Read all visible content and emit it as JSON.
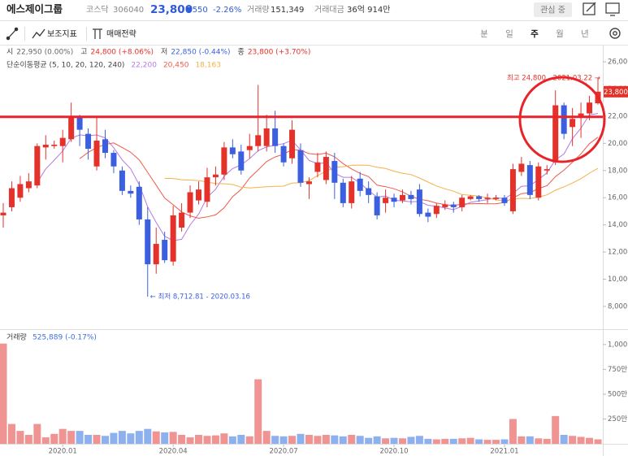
{
  "header": {
    "name": "에스제이그룹",
    "market": "코스닥",
    "code": "306040",
    "price": "23,800",
    "change": "▼550",
    "change_pct": "-2.26%",
    "volume_label": "거래량",
    "volume": "151,349",
    "amount_label": "거래대금",
    "amount": "36억 914만",
    "watch": "관심 중"
  },
  "toolbar": {
    "indicators": "보조지표",
    "strategy": "매매전략",
    "periods": [
      "분",
      "일",
      "주",
      "월",
      "년"
    ],
    "selected_period": 2
  },
  "ohlc_info": [
    {
      "label": "시",
      "value": "22,950 (0.00%)",
      "color": "#666666"
    },
    {
      "label": "고",
      "value": "24,800 (+8.06%)",
      "color": "#e4322b"
    },
    {
      "label": "저",
      "value": "22,850 (-0.44%)",
      "color": "#3c5fe0"
    },
    {
      "label": "종",
      "value": "23,800 (+3.70%)",
      "color": "#e4322b"
    }
  ],
  "chart_data": [
    {
      "type": "candlestick",
      "categories": [
        null,
        null,
        null,
        null,
        null,
        null,
        null,
        "2020.01",
        null,
        null,
        null,
        null,
        null,
        null,
        null,
        null,
        null,
        null,
        null,
        null,
        "2020.04",
        null,
        null,
        null,
        null,
        null,
        null,
        null,
        null,
        null,
        null,
        null,
        null,
        "2020.07",
        null,
        null,
        null,
        null,
        null,
        null,
        null,
        null,
        null,
        null,
        null,
        null,
        "2020.10",
        null,
        null,
        null,
        null,
        null,
        null,
        null,
        null,
        null,
        null,
        null,
        null,
        "2021.01",
        null,
        null,
        null,
        null,
        null,
        null,
        null,
        null,
        null,
        null,
        null
      ],
      "open": [
        14700,
        15300,
        16000,
        16700,
        16900,
        19700,
        19800,
        19800,
        20300,
        21900,
        20700,
        18300,
        20300,
        19300,
        18000,
        16500,
        16800,
        14400,
        11100,
        12900,
        11300,
        13800,
        14900,
        15800,
        15700,
        17500,
        17700,
        19700,
        19400,
        19500,
        19800,
        19800,
        21100,
        19800,
        18900,
        19500,
        17000,
        17900,
        17300,
        18700,
        17100,
        15600,
        17400,
        16700,
        16100,
        15600,
        16000,
        15800,
        16200,
        16600,
        14900,
        14800,
        15300,
        15500,
        15300,
        15900,
        16100,
        15900,
        15900,
        16000,
        15000,
        17900,
        18400,
        16000,
        18000,
        18600,
        22800,
        21200,
        22000,
        22200,
        22950
      ],
      "high": [
        15600,
        17200,
        17600,
        17800,
        20000,
        20600,
        20200,
        21000,
        23000,
        22100,
        21100,
        21900,
        21000,
        19500,
        18300,
        16900,
        17200,
        15300,
        13800,
        13500,
        15400,
        15600,
        16900,
        17200,
        18200,
        18300,
        20100,
        20300,
        19900,
        20700,
        24300,
        22100,
        22400,
        20000,
        21700,
        20000,
        17500,
        19300,
        19400,
        19300,
        17400,
        17600,
        17900,
        17200,
        16400,
        16600,
        16300,
        16600,
        16500,
        17000,
        15200,
        15600,
        15800,
        15700,
        16200,
        16200,
        16200,
        16300,
        16200,
        16200,
        18500,
        19000,
        18700,
        18600,
        18400,
        23900,
        23000,
        22600,
        23000,
        23500,
        24800
      ],
      "low": [
        13800,
        15000,
        15700,
        16400,
        16700,
        18800,
        19600,
        18600,
        20100,
        19800,
        18800,
        18000,
        18900,
        17800,
        16200,
        16000,
        14000,
        8712.81,
        10400,
        11200,
        11000,
        13500,
        14500,
        15500,
        15300,
        16900,
        17300,
        18900,
        17700,
        18900,
        19400,
        19400,
        19300,
        18300,
        18500,
        16800,
        15900,
        17500,
        17000,
        15900,
        15300,
        15200,
        16100,
        15600,
        14400,
        14900,
        15300,
        15600,
        15500,
        14600,
        14200,
        14500,
        15100,
        14900,
        15000,
        15800,
        15700,
        15600,
        15800,
        15400,
        14800,
        17600,
        15900,
        15800,
        17700,
        18400,
        20300,
        19800,
        20400,
        21700,
        22850
      ],
      "close": [
        14900,
        16700,
        17000,
        17200,
        19800,
        19900,
        19900,
        20400,
        21900,
        21000,
        19600,
        20200,
        19300,
        18300,
        16500,
        16300,
        14400,
        11100,
        12600,
        11400,
        14700,
        14900,
        16400,
        16600,
        17500,
        17700,
        19700,
        19200,
        18000,
        19800,
        20600,
        21100,
        19800,
        18600,
        21000,
        17100,
        17200,
        18600,
        19000,
        17100,
        15600,
        17200,
        16500,
        16200,
        14700,
        16000,
        15700,
        16200,
        15900,
        14800,
        14600,
        15400,
        15500,
        15300,
        16000,
        16100,
        15900,
        16000,
        16000,
        15600,
        18100,
        18500,
        16200,
        18300,
        18100,
        22800,
        20700,
        21800,
        22200,
        23000,
        23800
      ],
      "up_color": "#e4322b",
      "down_color": "#3c5fe0",
      "ylim": [
        6920,
        26840
      ],
      "yticks": [
        {
          "value": 8000,
          "label": "8,000"
        },
        {
          "value": 10000,
          "label": "10,000"
        },
        {
          "value": 12000,
          "label": "12,000"
        },
        {
          "value": 14000,
          "label": "14,000"
        },
        {
          "value": 16000,
          "label": "16,000"
        },
        {
          "value": 18000,
          "label": "18,000"
        },
        {
          "value": 20000,
          "label": "20,000"
        },
        {
          "value": 22000,
          "label": "22,000"
        },
        {
          "value": 24000,
          "label": "24,000"
        },
        {
          "value": 26000,
          "label": "26,000"
        }
      ],
      "moving_average": {
        "label": "단순이동평균 (5, 10, 20, 120, 240)",
        "series": [
          {
            "color": "#b679e0",
            "current": "22,200",
            "values": [
              null,
              null,
              null,
              null,
              17120,
              18120,
              18760,
              19440,
              20380,
              20620,
              20560,
              20620,
              20400,
              19680,
              18780,
              18120,
              16960,
              15320,
              14180,
              13160,
              12840,
              12940,
              14000,
              14800,
              16020,
              16620,
              17580,
              18140,
              18420,
              18880,
              19460,
              19740,
              19860,
              19980,
              20220,
              19520,
              18740,
              18500,
              18580,
              17800,
              17500,
              17500,
              17080,
              16520,
              16040,
              16120,
              15820,
              15760,
              15700,
              15720,
              15440,
              15380,
              15240,
              15120,
              15360,
              15660,
              15760,
              15860,
              16000,
              15920,
              16320,
              16840,
              16880,
              17340,
              17840,
              18780,
              19220,
              20340,
              21120,
              22100,
              22200
            ]
          },
          {
            "color": "#ef5a4a",
            "current": "20,450",
            "values": [
              null,
              null,
              null,
              null,
              null,
              null,
              null,
              null,
              null,
              18870,
              19340,
              19690,
              19920,
              20030,
              19700,
              19340,
              18790,
              17860,
              16930,
              15970,
              15480,
              14950,
              14660,
              14490,
              14590,
              14730,
              15260,
              16070,
              16610,
              17450,
              18040,
              18660,
              19000,
              19200,
              19550,
              19490,
              19240,
              19180,
              19280,
              19010,
              18510,
              18120,
              17790,
              17550,
              16920,
              16810,
              16660,
              16420,
              16110,
              15880,
              15780,
              15600,
              15500,
              15410,
              15540,
              15550,
              15570,
              15550,
              15560,
              15640,
              15990,
              16300,
              16370,
              16670,
              16880,
              17550,
              18030,
              18610,
              19230,
              19970,
              20450
            ]
          },
          {
            "color": "#f5b04a",
            "current": "18,163",
            "values": [
              null,
              null,
              null,
              null,
              null,
              null,
              null,
              null,
              null,
              null,
              null,
              null,
              null,
              null,
              null,
              null,
              null,
              null,
              null,
              17420,
              17410,
              17320,
              17290,
              17260,
              17150,
              17040,
              17030,
              16970,
              16770,
              16710,
              16760,
              16810,
              16830,
              16850,
              17070,
              17110,
              17250,
              17630,
              17950,
              18230,
              18280,
              18390,
              18400,
              18380,
              18240,
              18150,
              17950,
              17800,
              17700,
              17450,
              17150,
              16860,
              16650,
              16480,
              16230,
              16180,
              16120,
              15990,
              15840,
              15760,
              15890,
              15950,
              15940,
              16040,
              16210,
              16550,
              16800,
              17080,
              17400,
              17810,
              18163
            ]
          }
        ]
      },
      "high_note": "최고 24,800 - 2021.03.22 →",
      "low_note": "← 최저 8,712.81 - 2020.03.16",
      "last_price_label": "23,800",
      "hline": 21950,
      "hline_color": "#e8242a"
    },
    {
      "type": "bar",
      "title": "거래량",
      "subtitle": "525,889 (-0.17%)",
      "values": [
        1010,
        200,
        130,
        90,
        200,
        65,
        100,
        150,
        130,
        130,
        90,
        90,
        80,
        110,
        130,
        105,
        130,
        150,
        125,
        115,
        120,
        90,
        65,
        90,
        80,
        85,
        105,
        75,
        90,
        75,
        650,
        130,
        80,
        75,
        80,
        100,
        90,
        80,
        90,
        85,
        75,
        90,
        80,
        60,
        75,
        55,
        60,
        55,
        70,
        80,
        50,
        45,
        50,
        50,
        55,
        60,
        45,
        40,
        40,
        45,
        250,
        75,
        75,
        55,
        50,
        280,
        90,
        80,
        70,
        60,
        45
      ],
      "up_color": "#ef9393",
      "down_color": "#8db0ef",
      "flat_color": "#9a9a9a",
      "ylim": [
        0,
        1130
      ],
      "yticks": [
        {
          "value": 250,
          "label": "250만"
        },
        {
          "value": 500,
          "label": "500만"
        },
        {
          "value": 750,
          "label": "750만"
        },
        {
          "value": 1000,
          "label": "1,000만"
        }
      ]
    }
  ]
}
